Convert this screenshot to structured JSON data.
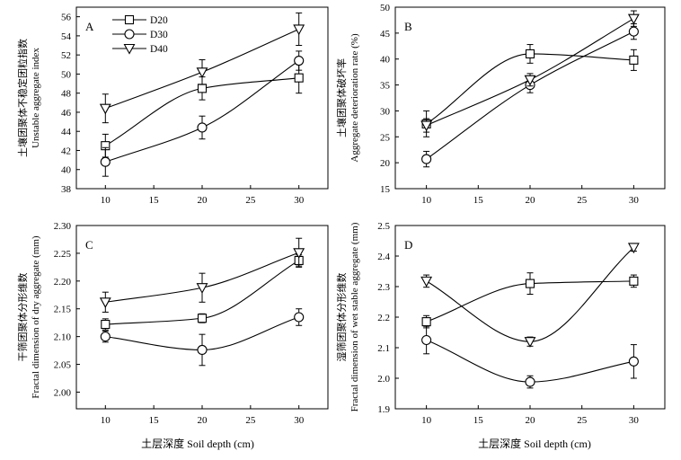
{
  "figure": {
    "xlabel_bottom": "土层深度 Soil depth (cm)"
  },
  "chart_data": [
    {
      "type": "line",
      "panel": "A",
      "ylabel_cn": "土壤团聚体不稳定团粒指数",
      "ylabel_en": "Unstable aggregate index",
      "x": [
        10,
        20,
        30
      ],
      "xticks": [
        10,
        15,
        20,
        25,
        30
      ],
      "xlim": [
        7,
        33
      ],
      "ylim": [
        38,
        57
      ],
      "yticks": [
        38,
        40,
        42,
        44,
        46,
        48,
        50,
        52,
        54,
        56
      ],
      "grid": false,
      "legend": "top-left",
      "series": [
        {
          "name": "D20",
          "marker": "square",
          "values": [
            42.5,
            48.5,
            49.6
          ],
          "errors": [
            1.2,
            1.2,
            1.6
          ]
        },
        {
          "name": "D30",
          "marker": "circle",
          "values": [
            40.8,
            44.4,
            51.4
          ],
          "errors": [
            1.5,
            1.2,
            1.0
          ]
        },
        {
          "name": "D40",
          "marker": "triangle",
          "values": [
            46.4,
            50.2,
            54.7
          ],
          "errors": [
            1.5,
            1.3,
            1.7
          ]
        }
      ]
    },
    {
      "type": "line",
      "panel": "B",
      "ylabel_cn": "土壤团聚体破坏率",
      "ylabel_en": "Aggregate deterioration rate (%)",
      "x": [
        10,
        20,
        30
      ],
      "xticks": [
        10,
        15,
        20,
        25,
        30
      ],
      "xlim": [
        7,
        33
      ],
      "ylim": [
        15,
        50
      ],
      "yticks": [
        15,
        20,
        25,
        30,
        35,
        40,
        45,
        50
      ],
      "grid": false,
      "series": [
        {
          "name": "D20",
          "marker": "square",
          "values": [
            27.5,
            41.0,
            39.8
          ],
          "errors": [
            2.5,
            1.8,
            2.0
          ]
        },
        {
          "name": "D30",
          "marker": "circle",
          "values": [
            20.7,
            35.0,
            45.3
          ],
          "errors": [
            1.5,
            1.5,
            1.5
          ]
        },
        {
          "name": "D40",
          "marker": "triangle",
          "values": [
            27.2,
            36.0,
            47.8
          ],
          "errors": [
            1.3,
            1.2,
            1.5
          ]
        }
      ]
    },
    {
      "type": "line",
      "panel": "C",
      "ylabel_cn": "干筛团聚体分形维数",
      "ylabel_en": "Fractal dimension of dry aggregate (mm)",
      "x": [
        10,
        20,
        30
      ],
      "xticks": [
        10,
        15,
        20,
        25,
        30
      ],
      "xlim": [
        7,
        33
      ],
      "ylim": [
        1.97,
        2.3
      ],
      "yticks": [
        2.0,
        2.05,
        2.1,
        2.15,
        2.2,
        2.25,
        2.3
      ],
      "ytick_labels": [
        "2.00",
        "2.05",
        "2.10",
        "2.15",
        "2.20",
        "2.25",
        "2.30"
      ],
      "grid": false,
      "series": [
        {
          "name": "D20",
          "marker": "square",
          "values": [
            2.122,
            2.133,
            2.237
          ],
          "errors": [
            0.01,
            0.008,
            0.01
          ]
        },
        {
          "name": "D30",
          "marker": "circle",
          "values": [
            2.1,
            2.076,
            2.135
          ],
          "errors": [
            0.01,
            0.028,
            0.015
          ]
        },
        {
          "name": "D40",
          "marker": "triangle",
          "values": [
            2.162,
            2.188,
            2.251
          ],
          "errors": [
            0.018,
            0.026,
            0.026
          ]
        }
      ]
    },
    {
      "type": "line",
      "panel": "D",
      "ylabel_cn": "湿筛团聚体分形维数",
      "ylabel_en": "Fractal dimension of wet stable aggregate (mm)",
      "x": [
        10,
        20,
        30
      ],
      "xticks": [
        10,
        15,
        20,
        25,
        30
      ],
      "xlim": [
        7,
        33
      ],
      "ylim": [
        1.9,
        2.5
      ],
      "yticks": [
        1.9,
        2.0,
        2.1,
        2.2,
        2.3,
        2.4,
        2.5
      ],
      "ytick_labels": [
        "1.9",
        "2.0",
        "2.1",
        "2.2",
        "2.3",
        "2.4",
        "2.5"
      ],
      "grid": false,
      "series": [
        {
          "name": "D20",
          "marker": "square",
          "values": [
            2.185,
            2.31,
            2.318
          ],
          "errors": [
            0.02,
            0.035,
            0.02
          ]
        },
        {
          "name": "D30",
          "marker": "circle",
          "values": [
            2.125,
            1.988,
            2.055
          ],
          "errors": [
            0.045,
            0.02,
            0.055
          ]
        },
        {
          "name": "D40",
          "marker": "triangle",
          "values": [
            2.318,
            2.12,
            2.428
          ],
          "errors": [
            0.02,
            0.015,
            0.012
          ]
        }
      ]
    }
  ]
}
